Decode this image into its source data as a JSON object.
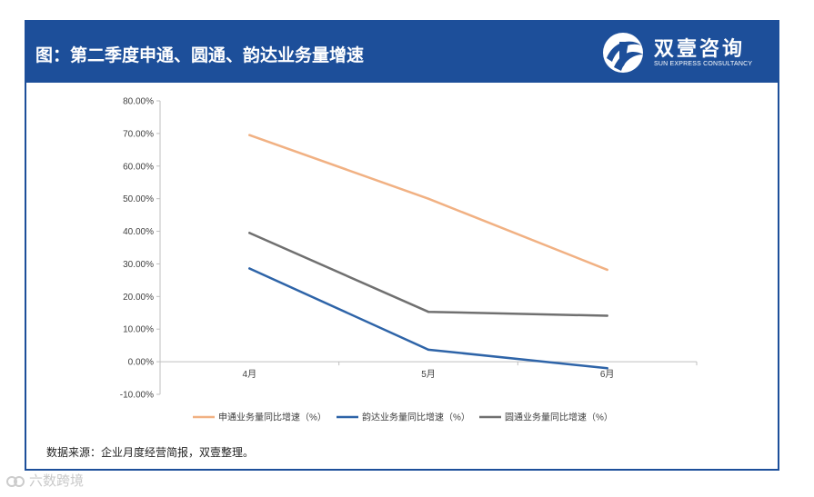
{
  "header": {
    "title": "图：第二季度申通、圆通、韵达业务量增速",
    "brand_name": "双壹咨询",
    "brand_sub": "SUN EXPRESS CONSULTANCY"
  },
  "source_note": "数据来源：企业月度经营简报，双壹整理。",
  "watermark": "六数跨境",
  "colors": {
    "header_bg": "#1d4f9a",
    "sto": "#f1b183",
    "yunda": "#2e64a8",
    "yto": "#707070"
  },
  "chart_data": {
    "type": "line",
    "title": "",
    "categories": [
      "4月",
      "5月",
      "6月"
    ],
    "series": [
      {
        "name": "申通业务量同比增速（%）",
        "color": "#f1b183",
        "values": [
          69.5,
          50.0,
          28.2
        ]
      },
      {
        "name": "韵达业务量同比增速（%）",
        "color": "#2e64a8",
        "values": [
          28.6,
          3.7,
          -2.0
        ]
      },
      {
        "name": "圆通业务量同比增速（%）",
        "color": "#707070",
        "values": [
          39.5,
          15.3,
          14.1
        ]
      }
    ],
    "ylim": [
      -10,
      80
    ],
    "ytick_labels": [
      "80.00%",
      "70.00%",
      "60.00%",
      "50.00%",
      "40.00%",
      "30.00%",
      "20.00%",
      "10.00%",
      "0.00%",
      "-10.00%"
    ],
    "xlabel": "",
    "ylabel": "",
    "legend": "bottom",
    "grid": false
  }
}
